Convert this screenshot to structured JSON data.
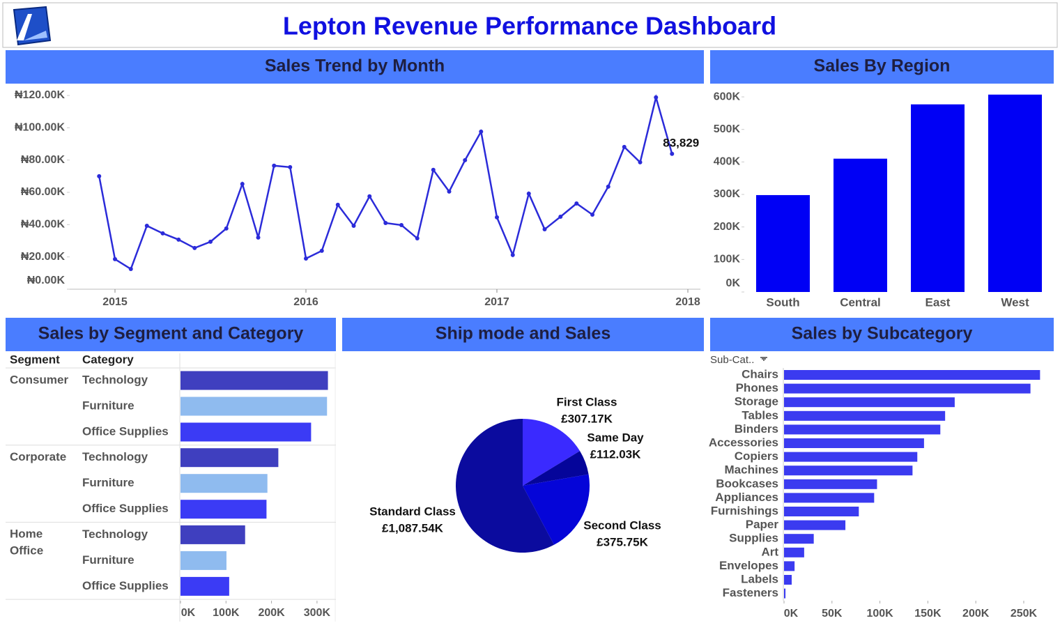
{
  "title": "Lepton Revenue Performance Dashboard",
  "chart_data": [
    {
      "type": "line",
      "title": "Sales Trend by Month",
      "color": "#2b2bd9",
      "x": [
        2014.917,
        2015,
        2015.083,
        2015.167,
        2015.25,
        2015.333,
        2015.417,
        2015.5,
        2015.583,
        2015.667,
        2015.75,
        2015.833,
        2015.917,
        2016,
        2016.083,
        2016.167,
        2016.25,
        2016.333,
        2016.417,
        2016.5,
        2016.583,
        2016.667,
        2016.75,
        2016.833,
        2016.917,
        2017,
        2017.083,
        2017.167,
        2017.25,
        2017.333,
        2017.417,
        2017.5,
        2017.583,
        2017.667,
        2017.75,
        2017.833,
        2017.917
      ],
      "values": [
        70000,
        18600,
        12500,
        39300,
        34600,
        30700,
        25500,
        29400,
        37600,
        65200,
        32000,
        76500,
        75600,
        19000,
        23800,
        52300,
        39300,
        57500,
        41000,
        39700,
        31500,
        73900,
        60500,
        79900,
        97600,
        44500,
        21200,
        59200,
        37100,
        44900,
        53100,
        46200,
        63500,
        88100,
        78600,
        118800,
        83829
      ],
      "value_labels": [
        null,
        null,
        null,
        null,
        null,
        null,
        null,
        null,
        null,
        null,
        null,
        null,
        null,
        null,
        null,
        null,
        null,
        null,
        null,
        null,
        null,
        null,
        null,
        null,
        null,
        null,
        null,
        null,
        null,
        null,
        null,
        null,
        null,
        null,
        null,
        null,
        "83,829"
      ],
      "xlim": [
        2014.75,
        2018.07
      ],
      "xticks": [
        2015,
        2016,
        2017,
        2018
      ],
      "ylim": [
        0,
        120000
      ],
      "yticks": [
        {
          "value": 0,
          "label": "₦0.00K"
        },
        {
          "value": 20000,
          "label": "₦20.00K"
        },
        {
          "value": 40000,
          "label": "₦40.00K"
        },
        {
          "value": 60000,
          "label": "₦60.00K"
        },
        {
          "value": 80000,
          "label": "₦80.00K"
        },
        {
          "value": 100000,
          "label": "₦100.00K"
        },
        {
          "value": 120000,
          "label": "₦120.00K"
        }
      ]
    },
    {
      "type": "bar",
      "title": "Sales By Region",
      "color": "#0000f5",
      "categories": [
        "South",
        "Central",
        "East",
        "West"
      ],
      "values": [
        298000,
        410000,
        577000,
        607000
      ],
      "ylim": [
        0,
        620000
      ],
      "yticks": [
        {
          "value": 0,
          "label": "0K"
        },
        {
          "value": 100000,
          "label": "100K"
        },
        {
          "value": 200000,
          "label": "200K"
        },
        {
          "value": 300000,
          "label": "300K"
        },
        {
          "value": 400000,
          "label": "400K"
        },
        {
          "value": 500000,
          "label": "500K"
        },
        {
          "value": 600000,
          "label": "600K"
        }
      ]
    },
    {
      "type": "grouped-hbar",
      "title": "Sales by Segment and Category",
      "row_header": "Segment",
      "column_header": "Category",
      "categories": [
        "Consumer",
        "Corporate",
        "Home Office"
      ],
      "series": [
        {
          "name": "Technology",
          "color": "#3f3fbf",
          "values": [
            324000,
            215000,
            142000
          ]
        },
        {
          "name": "Furniture",
          "color": "#8fbbef",
          "values": [
            322000,
            191000,
            101000
          ]
        },
        {
          "name": "Office Supplies",
          "color": "#3b3bf5",
          "values": [
            287000,
            189000,
            107000
          ]
        }
      ],
      "xlim": [
        0,
        340000
      ],
      "xticks": [
        {
          "value": 0,
          "label": "0K"
        },
        {
          "value": 100000,
          "label": "100K"
        },
        {
          "value": 200000,
          "label": "200K"
        },
        {
          "value": 300000,
          "label": "300K"
        }
      ]
    },
    {
      "type": "pie",
      "title": "Ship mode and Sales",
      "categories": [
        "First Class",
        "Same Day",
        "Second Class",
        "Standard Class"
      ],
      "values": [
        307170,
        112030,
        375750,
        1087540
      ],
      "value_labels": [
        "£307.17K",
        "£112.03K",
        "£375.75K",
        "£1,087.54K"
      ],
      "colors": [
        "#3a2aff",
        "#05059a",
        "#0505d8",
        "#0b0b9e"
      ]
    },
    {
      "type": "hbar",
      "title": "Sales by Subcategory",
      "axis_label": "Sub-Cat..",
      "color": "#3b3bf0",
      "categories": [
        "Chairs",
        "Phones",
        "Storage",
        "Tables",
        "Binders",
        "Accessories",
        "Copiers",
        "Machines",
        "Bookcases",
        "Appliances",
        "Furnishings",
        "Paper",
        "Supplies",
        "Art",
        "Envelopes",
        "Labels",
        "Fasteners"
      ],
      "values": [
        267000,
        257000,
        178000,
        168000,
        163000,
        146000,
        139000,
        134000,
        97000,
        94000,
        78000,
        64000,
        31000,
        21000,
        11000,
        8000,
        1500
      ],
      "xlim": [
        0,
        270000
      ],
      "xticks": [
        {
          "value": 0,
          "label": "0K"
        },
        {
          "value": 50000,
          "label": "50K"
        },
        {
          "value": 100000,
          "label": "100K"
        },
        {
          "value": 150000,
          "label": "150K"
        },
        {
          "value": 200000,
          "label": "200K"
        },
        {
          "value": 250000,
          "label": "250K"
        }
      ]
    }
  ]
}
